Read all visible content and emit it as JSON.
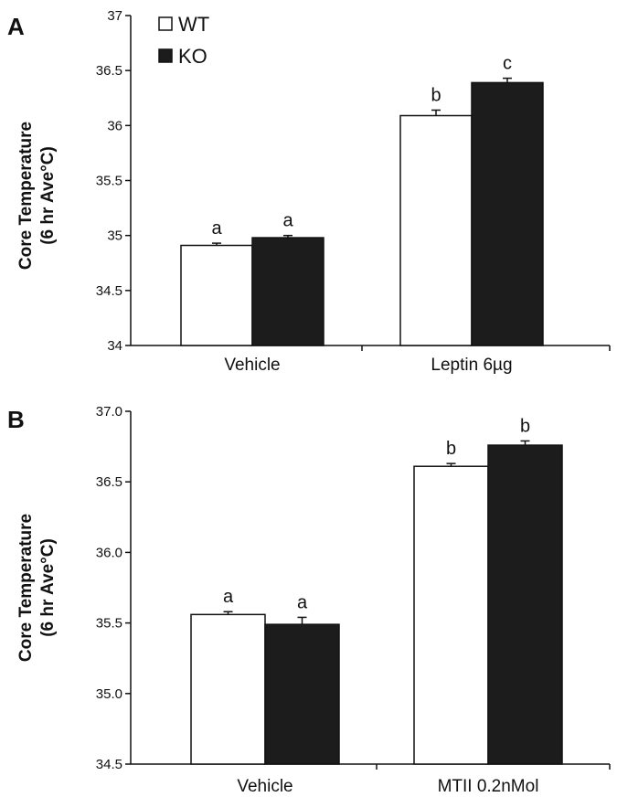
{
  "chart_data": [
    {
      "type": "bar",
      "panel_label": "A",
      "ylabel": [
        "Core Temperature",
        "(6 hr Ave°C)"
      ],
      "categories": [
        "Vehicle",
        "Leptin 6µg"
      ],
      "ylim": [
        34,
        37
      ],
      "yticks": [
        "34",
        "34.5",
        "35",
        "35.5",
        "36",
        "36.5",
        "37"
      ],
      "series": [
        {
          "name": "WT",
          "values": [
            34.91,
            36.09
          ],
          "errors": [
            0.02,
            0.05
          ],
          "labels": [
            "a",
            "b"
          ],
          "color": "#ffffff"
        },
        {
          "name": "KO",
          "values": [
            34.98,
            36.39
          ],
          "errors": [
            0.02,
            0.04
          ],
          "labels": [
            "a",
            "c"
          ],
          "color": "#1c1c1c"
        }
      ],
      "legend": "top-left",
      "grid": false
    },
    {
      "type": "bar",
      "panel_label": "B",
      "ylabel": [
        "Core Temperature",
        "(6 hr Ave°C)"
      ],
      "categories": [
        "Vehicle",
        "MTII 0.2nMol"
      ],
      "ylim": [
        34.5,
        37.0
      ],
      "yticks": [
        "34.5",
        "35.0",
        "35.5",
        "36.0",
        "36.5",
        "37.0"
      ],
      "series": [
        {
          "name": "WT",
          "values": [
            35.56,
            36.61
          ],
          "errors": [
            0.02,
            0.02
          ],
          "labels": [
            "a",
            "b"
          ],
          "color": "#ffffff"
        },
        {
          "name": "KO",
          "values": [
            35.49,
            36.76
          ],
          "errors": [
            0.05,
            0.03
          ],
          "labels": [
            "a",
            "b"
          ],
          "color": "#1c1c1c"
        }
      ],
      "grid": false
    }
  ]
}
